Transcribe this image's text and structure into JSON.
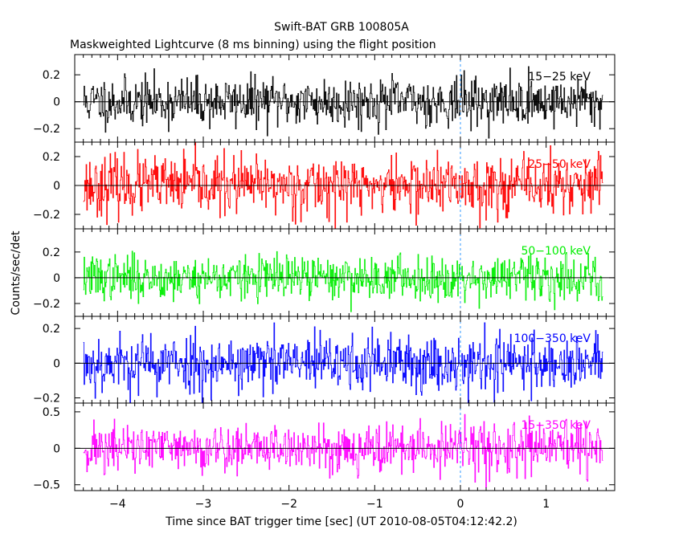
{
  "chart_data": {
    "type": "line",
    "title": "Swift-BAT GRB 100805A",
    "subtitle": "Maskweighted Lightcurve (8 ms binning) using the flight position",
    "xlabel": "Time since BAT trigger time [sec] (UT 2010-08-05T04:12:42.2)",
    "ylabel": "Counts/sec/det",
    "xlim": [
      -4.5,
      1.8
    ],
    "x_ticks": [
      -4,
      -3,
      -2,
      -1,
      0,
      1
    ],
    "x_tick_labels": [
      "−4",
      "−3",
      "−2",
      "−1",
      "0",
      "1"
    ],
    "data_range": [
      -4.4,
      1.66
    ],
    "bin_width": 0.008,
    "trigger_marker": 0,
    "grid": false,
    "panels": [
      {
        "name": "15-25 keV",
        "label": "15−25 keV",
        "color": "#000000",
        "ylim": [
          -0.3,
          0.35
        ],
        "y_ticks": [
          -0.2,
          0,
          0.2
        ],
        "y_tick_labels": [
          "−0.2",
          "0",
          "0.2"
        ],
        "noise_sigma": 0.09,
        "seed": 11
      },
      {
        "name": "25-50 keV",
        "label": "25−50 keV",
        "color": "#ff0000",
        "ylim": [
          -0.3,
          0.3
        ],
        "y_ticks": [
          -0.2,
          0,
          0.2
        ],
        "y_tick_labels": [
          "−0.2",
          "0",
          "0.2"
        ],
        "noise_sigma": 0.1,
        "seed": 23
      },
      {
        "name": "50-100 keV",
        "label": "50−100 keV",
        "color": "#00ee00",
        "ylim": [
          -0.3,
          0.38
        ],
        "y_ticks": [
          -0.2,
          0,
          0.2
        ],
        "y_tick_labels": [
          "−0.2",
          "0",
          "0.2"
        ],
        "noise_sigma": 0.085,
        "seed": 37
      },
      {
        "name": "100-350 keV",
        "label": "100−350 keV",
        "color": "#0000ff",
        "ylim": [
          -0.23,
          0.27
        ],
        "y_ticks": [
          -0.2,
          0,
          0.2
        ],
        "y_tick_labels": [
          "−0.2",
          "0",
          "0.2"
        ],
        "noise_sigma": 0.085,
        "seed": 53
      },
      {
        "name": "15-350 keV",
        "label": "15−350 keV",
        "color": "#ff00ff",
        "ylim": [
          -0.58,
          0.62
        ],
        "y_ticks": [
          -0.5,
          0,
          0.5
        ],
        "y_tick_labels": [
          "−0.5",
          "0",
          "0.5"
        ],
        "noise_sigma": 0.17,
        "seed": 71
      }
    ]
  }
}
